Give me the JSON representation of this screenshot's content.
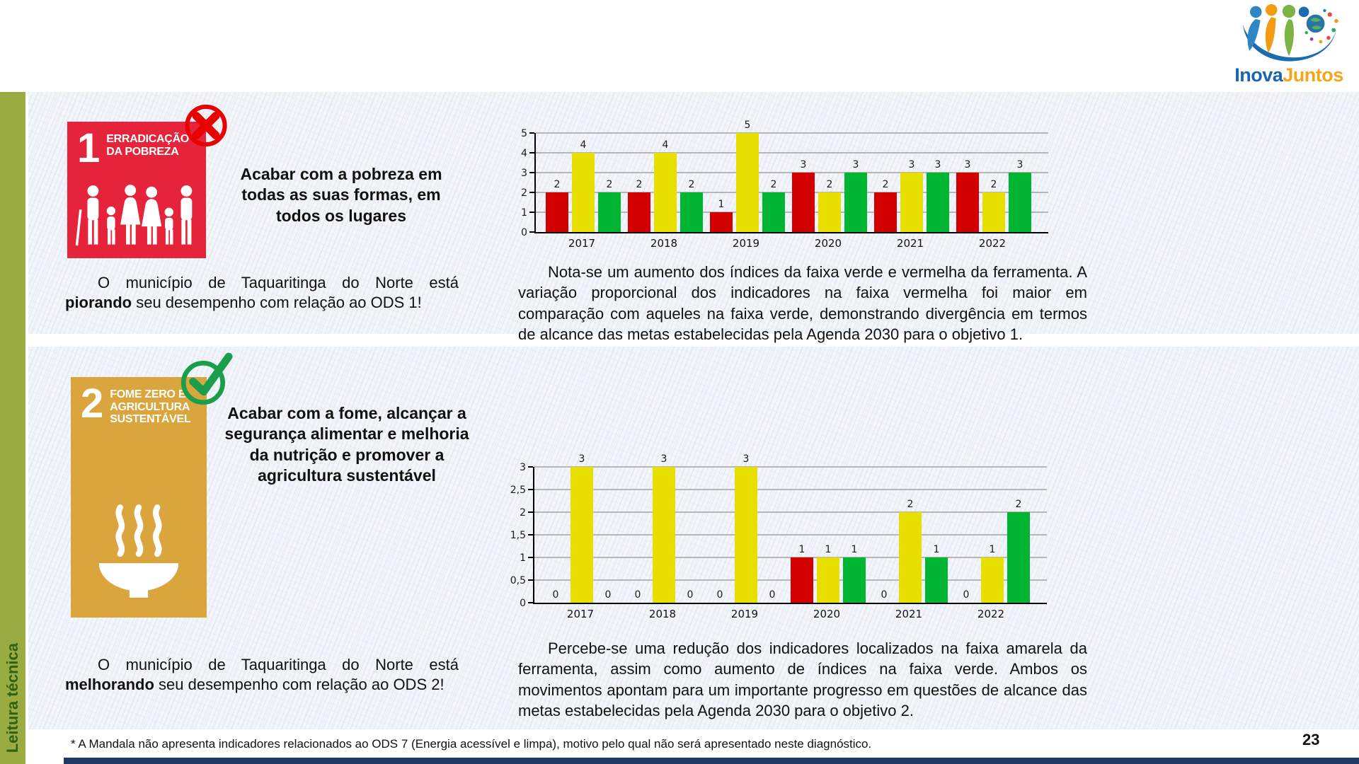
{
  "page": {
    "sidebar_label": "Leitura técnica",
    "footnote": "* A Mandala não apresenta indicadores relacionados ao ODS 7 (Energia acessível e limpa), motivo pelo qual não será apresentado neste diagnóstico.",
    "page_number": "23"
  },
  "logo": {
    "name": "InovaJuntos",
    "text_primary": "Inova",
    "text_secondary": "Juntos",
    "primary_color": "#1766ae",
    "secondary_color": "#f5a51a"
  },
  "colors": {
    "panel_bg": "#f2f5fa",
    "sidebar_green": "#9aab41",
    "sidebar_text_green": "#2e6212",
    "bottom_bar_navy": "#1f3864",
    "ods1_red": "#e5243b",
    "ods2_gold": "#d9a53c",
    "cross_red": "#e80202",
    "check_green": "#1b9e4b",
    "bar_red": "#d20000",
    "bar_yellow": "#e6df00",
    "bar_green": "#00b532"
  },
  "sections": [
    {
      "ods_number": "1",
      "ods_title_lines": [
        "ERRADICAÇÃO",
        "DA POBREZA"
      ],
      "status_icon": "cross",
      "goal_text": "Acabar com a pobreza em todas as suas formas, em todos os lugares",
      "status_prefix": "O município de Taquaritinga do Norte está ",
      "status_bold": "piorando",
      "status_suffix": " seu desempenho com relação ao ODS 1!",
      "analysis_text": "Nota-se um aumento dos índices da faixa verde e vermelha da ferramenta. A variação proporcional dos indicadores na faixa vermelha foi maior em comparação com aqueles na faixa verde, demonstrando divergência em termos de alcance das metas estabelecidas pela Agenda 2030 para o objetivo 1."
    },
    {
      "ods_number": "2",
      "ods_title_lines": [
        "FOME ZERO E",
        "AGRICULTURA",
        "SUSTENTÁVEL"
      ],
      "status_icon": "check",
      "goal_text": "Acabar com a fome, alcançar a segurança alimentar e melhoria da nutrição e promover a agricultura sustentável",
      "status_prefix": "O município de Taquaritinga do Norte está ",
      "status_bold": "melhorando",
      "status_suffix": " seu desempenho com relação ao ODS 2!",
      "analysis_text": "Percebe-se uma redução dos indicadores localizados na faixa amarela da ferramenta, assim como aumento de índices na faixa verde. Ambos os movimentos apontam para um importante progresso em questões de alcance das metas estabelecidas pela Agenda 2030 para o objetivo 2."
    }
  ],
  "chart_data": [
    {
      "type": "bar",
      "title": "",
      "categories": [
        "2017",
        "2018",
        "2019",
        "2020",
        "2021",
        "2022"
      ],
      "series": [
        {
          "name": "faixa vermelha",
          "color": "#d20000",
          "values": [
            2,
            2,
            1,
            3,
            2,
            3
          ]
        },
        {
          "name": "faixa amarela",
          "color": "#e6df00",
          "values": [
            4,
            4,
            5,
            2,
            3,
            2
          ]
        },
        {
          "name": "faixa verde",
          "color": "#00b532",
          "values": [
            2,
            2,
            2,
            3,
            3,
            3
          ]
        }
      ],
      "ylim": [
        0,
        5
      ],
      "ytick_labels": [
        "0",
        "1",
        "2",
        "3",
        "4",
        "5"
      ],
      "grid": true,
      "legend": false,
      "bar_labels": true
    },
    {
      "type": "bar",
      "title": "",
      "categories": [
        "2017",
        "2018",
        "2019",
        "2020",
        "2021",
        "2022"
      ],
      "series": [
        {
          "name": "faixa vermelha",
          "color": "#d20000",
          "values": [
            0,
            0,
            0,
            1,
            0,
            0
          ]
        },
        {
          "name": "faixa amarela",
          "color": "#e6df00",
          "values": [
            3,
            3,
            3,
            1,
            2,
            1
          ]
        },
        {
          "name": "faixa verde",
          "color": "#00b532",
          "values": [
            0,
            0,
            0,
            1,
            1,
            2
          ]
        }
      ],
      "ylim": [
        0,
        3
      ],
      "ytick_labels": [
        "0",
        "0,5",
        "1",
        "1,5",
        "2",
        "2,5",
        "3"
      ],
      "grid": true,
      "legend": false,
      "bar_labels": true
    }
  ]
}
